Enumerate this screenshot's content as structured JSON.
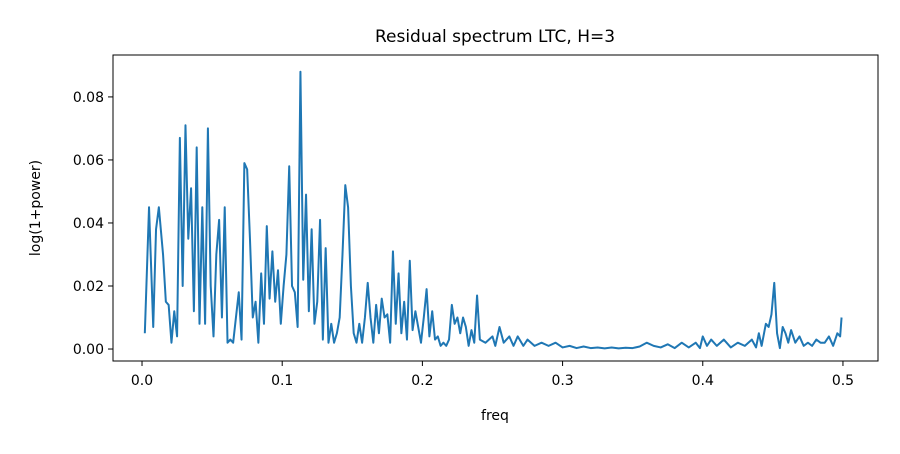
{
  "chart_data": {
    "type": "line",
    "title": "Residual spectrum LTC, H=3",
    "xlabel": "freq",
    "ylabel": "log(1+power)",
    "color": "#1f77b4",
    "x": [
      0.002,
      0.005,
      0.008,
      0.01,
      0.012,
      0.015,
      0.017,
      0.019,
      0.021,
      0.023,
      0.025,
      0.027,
      0.029,
      0.031,
      0.033,
      0.035,
      0.037,
      0.039,
      0.041,
      0.043,
      0.045,
      0.047,
      0.049,
      0.051,
      0.053,
      0.055,
      0.057,
      0.059,
      0.061,
      0.063,
      0.065,
      0.067,
      0.069,
      0.071,
      0.073,
      0.075,
      0.077,
      0.079,
      0.081,
      0.083,
      0.085,
      0.087,
      0.089,
      0.091,
      0.093,
      0.095,
      0.097,
      0.099,
      0.101,
      0.103,
      0.105,
      0.107,
      0.109,
      0.111,
      0.113,
      0.115,
      0.117,
      0.119,
      0.121,
      0.123,
      0.125,
      0.127,
      0.129,
      0.131,
      0.133,
      0.135,
      0.137,
      0.139,
      0.141,
      0.143,
      0.145,
      0.147,
      0.149,
      0.151,
      0.153,
      0.155,
      0.157,
      0.159,
      0.161,
      0.163,
      0.165,
      0.167,
      0.169,
      0.171,
      0.173,
      0.175,
      0.177,
      0.179,
      0.181,
      0.183,
      0.185,
      0.187,
      0.189,
      0.191,
      0.193,
      0.195,
      0.197,
      0.199,
      0.201,
      0.203,
      0.205,
      0.207,
      0.209,
      0.211,
      0.213,
      0.215,
      0.217,
      0.219,
      0.221,
      0.223,
      0.225,
      0.227,
      0.229,
      0.231,
      0.233,
      0.235,
      0.237,
      0.239,
      0.241,
      0.245,
      0.25,
      0.252,
      0.255,
      0.258,
      0.262,
      0.265,
      0.268,
      0.272,
      0.275,
      0.28,
      0.285,
      0.29,
      0.295,
      0.3,
      0.305,
      0.31,
      0.315,
      0.32,
      0.325,
      0.33,
      0.335,
      0.34,
      0.345,
      0.35,
      0.355,
      0.36,
      0.365,
      0.37,
      0.375,
      0.38,
      0.385,
      0.39,
      0.395,
      0.398,
      0.4,
      0.403,
      0.406,
      0.41,
      0.415,
      0.42,
      0.425,
      0.43,
      0.435,
      0.438,
      0.44,
      0.442,
      0.445,
      0.447,
      0.449,
      0.451,
      0.453,
      0.455,
      0.457,
      0.459,
      0.461,
      0.463,
      0.466,
      0.469,
      0.472,
      0.475,
      0.478,
      0.481,
      0.484,
      0.487,
      0.49,
      0.493,
      0.496,
      0.498,
      0.499
    ],
    "values": [
      0.005,
      0.045,
      0.007,
      0.038,
      0.045,
      0.03,
      0.015,
      0.014,
      0.002,
      0.012,
      0.004,
      0.067,
      0.02,
      0.071,
      0.035,
      0.051,
      0.012,
      0.064,
      0.008,
      0.045,
      0.008,
      0.07,
      0.02,
      0.004,
      0.03,
      0.041,
      0.01,
      0.045,
      0.002,
      0.003,
      0.002,
      0.01,
      0.018,
      0.003,
      0.059,
      0.057,
      0.035,
      0.01,
      0.015,
      0.002,
      0.024,
      0.008,
      0.039,
      0.016,
      0.031,
      0.015,
      0.025,
      0.008,
      0.02,
      0.03,
      0.058,
      0.02,
      0.018,
      0.007,
      0.088,
      0.022,
      0.049,
      0.012,
      0.038,
      0.008,
      0.015,
      0.041,
      0.003,
      0.032,
      0.002,
      0.008,
      0.002,
      0.005,
      0.01,
      0.03,
      0.052,
      0.045,
      0.02,
      0.005,
      0.002,
      0.008,
      0.002,
      0.01,
      0.021,
      0.01,
      0.002,
      0.014,
      0.005,
      0.016,
      0.01,
      0.011,
      0.002,
      0.031,
      0.008,
      0.024,
      0.005,
      0.015,
      0.003,
      0.028,
      0.006,
      0.012,
      0.007,
      0.002,
      0.01,
      0.019,
      0.004,
      0.012,
      0.003,
      0.004,
      0.001,
      0.002,
      0.001,
      0.003,
      0.014,
      0.008,
      0.01,
      0.005,
      0.01,
      0.007,
      0.001,
      0.006,
      0.002,
      0.017,
      0.003,
      0.002,
      0.004,
      0.001,
      0.007,
      0.002,
      0.004,
      0.001,
      0.004,
      0.001,
      0.003,
      0.001,
      0.002,
      0.001,
      0.002,
      0.0005,
      0.001,
      0.0003,
      0.0008,
      0.0003,
      0.0005,
      0.0002,
      0.0005,
      0.0002,
      0.0004,
      0.0003,
      0.0008,
      0.002,
      0.001,
      0.0005,
      0.0015,
      0.0003,
      0.002,
      0.0005,
      0.002,
      0.0003,
      0.004,
      0.001,
      0.003,
      0.001,
      0.003,
      0.0005,
      0.002,
      0.001,
      0.003,
      0.0005,
      0.005,
      0.001,
      0.008,
      0.007,
      0.011,
      0.021,
      0.005,
      0.0003,
      0.007,
      0.005,
      0.002,
      0.006,
      0.002,
      0.004,
      0.001,
      0.002,
      0.001,
      0.003,
      0.002,
      0.002,
      0.004,
      0.001,
      0.005,
      0.004,
      0.01
    ],
    "xlim": [
      -0.0207,
      0.525
    ],
    "ylim": [
      -0.0038,
      0.0933
    ],
    "xticks": [
      {
        "value": 0,
        "label": "0.0"
      },
      0.1,
      0.2,
      0.3,
      0.4,
      0.5
    ],
    "yticks": [
      {
        "value": 0,
        "label": "0.00"
      },
      {
        "value": 0.02,
        "label": "0.02"
      },
      {
        "value": 0.04,
        "label": "0.04"
      },
      {
        "value": 0.06,
        "label": "0.06"
      },
      {
        "value": 0.08,
        "label": "0.08"
      }
    ]
  }
}
